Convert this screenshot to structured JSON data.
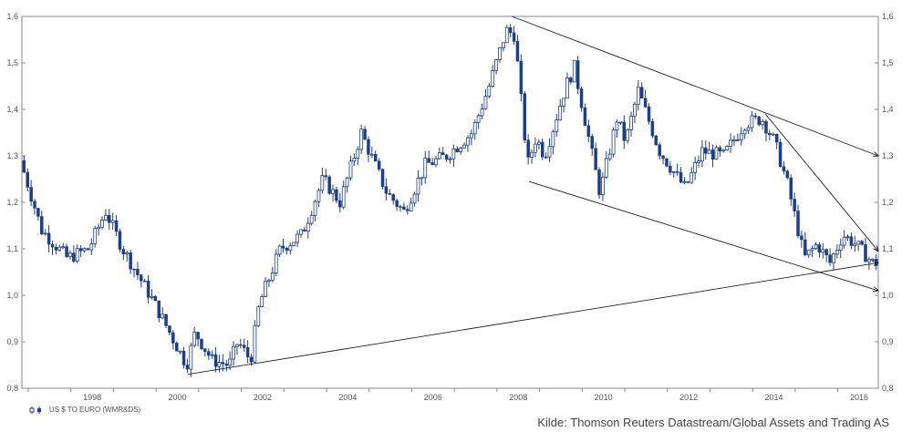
{
  "chart_data": {
    "type": "candlestick",
    "series_name": "US $ TO EURO (WMR&DS)",
    "source": "Kilde: Thomson Reuters Datastream/Global Assets and Trading AS",
    "x_range": [
      1996.85,
      2016.95
    ],
    "x_tick_labels": [
      "1998",
      "2000",
      "2002",
      "2004",
      "2006",
      "2008",
      "2010",
      "2012",
      "2014",
      "2016"
    ],
    "ylim": [
      0.8,
      1.6
    ],
    "y_tick_labels": [
      "0,8",
      "0,9",
      "1,0",
      "1,1",
      "1,2",
      "1,3",
      "1,4",
      "1,5",
      "1,6"
    ],
    "grid": false,
    "colors": {
      "up": "#ffffff",
      "down": "#1f3f7f",
      "outline": "#1f3f7f",
      "trend": "#222222"
    },
    "key_points": [
      {
        "x": 1996.9,
        "y": 1.29
      },
      {
        "x": 1997.4,
        "y": 1.14
      },
      {
        "x": 1998.0,
        "y": 1.08
      },
      {
        "x": 1998.5,
        "y": 1.1
      },
      {
        "x": 1998.9,
        "y": 1.18
      },
      {
        "x": 1999.3,
        "y": 1.1
      },
      {
        "x": 2000.0,
        "y": 0.99
      },
      {
        "x": 2000.8,
        "y": 0.85
      },
      {
        "x": 2001.0,
        "y": 0.92
      },
      {
        "x": 2001.4,
        "y": 0.86
      },
      {
        "x": 2001.8,
        "y": 0.85
      },
      {
        "x": 2002.0,
        "y": 0.9
      },
      {
        "x": 2002.3,
        "y": 0.86
      },
      {
        "x": 2002.5,
        "y": 0.98
      },
      {
        "x": 2003.0,
        "y": 1.1
      },
      {
        "x": 2003.5,
        "y": 1.13
      },
      {
        "x": 2004.0,
        "y": 1.25
      },
      {
        "x": 2004.4,
        "y": 1.2
      },
      {
        "x": 2004.9,
        "y": 1.35
      },
      {
        "x": 2005.5,
        "y": 1.22
      },
      {
        "x": 2005.9,
        "y": 1.18
      },
      {
        "x": 2006.4,
        "y": 1.28
      },
      {
        "x": 2006.9,
        "y": 1.3
      },
      {
        "x": 2007.5,
        "y": 1.35
      },
      {
        "x": 2007.9,
        "y": 1.45
      },
      {
        "x": 2008.3,
        "y": 1.57
      },
      {
        "x": 2008.5,
        "y": 1.56
      },
      {
        "x": 2008.8,
        "y": 1.28
      },
      {
        "x": 2009.0,
        "y": 1.34
      },
      {
        "x": 2009.2,
        "y": 1.3
      },
      {
        "x": 2009.7,
        "y": 1.45
      },
      {
        "x": 2009.9,
        "y": 1.49
      },
      {
        "x": 2010.5,
        "y": 1.22
      },
      {
        "x": 2010.9,
        "y": 1.38
      },
      {
        "x": 2011.1,
        "y": 1.33
      },
      {
        "x": 2011.4,
        "y": 1.44
      },
      {
        "x": 2011.9,
        "y": 1.31
      },
      {
        "x": 2012.5,
        "y": 1.23
      },
      {
        "x": 2012.9,
        "y": 1.31
      },
      {
        "x": 2013.4,
        "y": 1.3
      },
      {
        "x": 2013.9,
        "y": 1.37
      },
      {
        "x": 2014.3,
        "y": 1.38
      },
      {
        "x": 2014.6,
        "y": 1.33
      },
      {
        "x": 2014.9,
        "y": 1.24
      },
      {
        "x": 2015.3,
        "y": 1.08
      },
      {
        "x": 2015.6,
        "y": 1.11
      },
      {
        "x": 2015.9,
        "y": 1.07
      },
      {
        "x": 2016.2,
        "y": 1.13
      },
      {
        "x": 2016.5,
        "y": 1.11
      },
      {
        "x": 2016.9,
        "y": 1.07
      }
    ],
    "trendlines": [
      {
        "x1": 2008.35,
        "y1": 1.6,
        "x2": 2016.95,
        "y2": 1.3
      },
      {
        "x1": 2008.75,
        "y1": 1.245,
        "x2": 2016.95,
        "y2": 1.01
      },
      {
        "x1": 2000.75,
        "y1": 0.83,
        "x2": 2016.95,
        "y2": 1.07
      },
      {
        "x1": 2014.3,
        "y1": 1.39,
        "x2": 2016.95,
        "y2": 1.095
      }
    ]
  }
}
